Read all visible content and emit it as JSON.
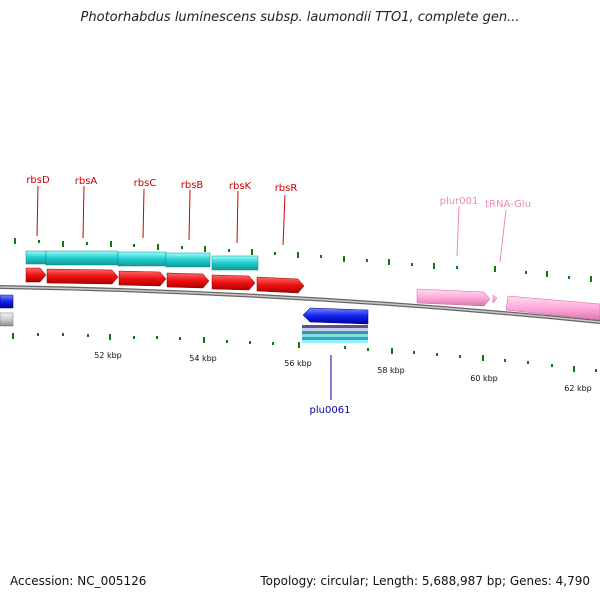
{
  "header": {
    "title": "Photorhabdus luminescens subsp. laumondii TTO1, complete gen..."
  },
  "footer": {
    "accession": "Accession: NC_005126",
    "summary": "Topology: circular; Length: 5,688,987 bp; Genes: 4,790"
  },
  "scale_labels": [
    "52 kbp",
    "54 kbp",
    "56 kbp",
    "58 kbp",
    "60 kbp",
    "62 kbp"
  ],
  "gene_labels": [
    {
      "text": "rbsD",
      "color": "#cc0000"
    },
    {
      "text": "rbsA",
      "color": "#cc0000"
    },
    {
      "text": "rbsC",
      "color": "#cc0000"
    },
    {
      "text": "rbsB",
      "color": "#cc0000"
    },
    {
      "text": "rbsK",
      "color": "#cc0000"
    },
    {
      "text": "rbsR",
      "color": "#cc0000"
    },
    {
      "text": "plur001",
      "color": "#ee88bb"
    },
    {
      "text": "tRNA-Glu",
      "color": "#ee88bb"
    },
    {
      "text": "plu0061",
      "color": "#0000aa"
    }
  ],
  "colors": {
    "cds": "#ee1111",
    "rna": "#22cccc",
    "blue_gene": "#1122ee",
    "pink_gene": "#ffaadd",
    "tick": "#117711",
    "backbone": "#888888"
  }
}
